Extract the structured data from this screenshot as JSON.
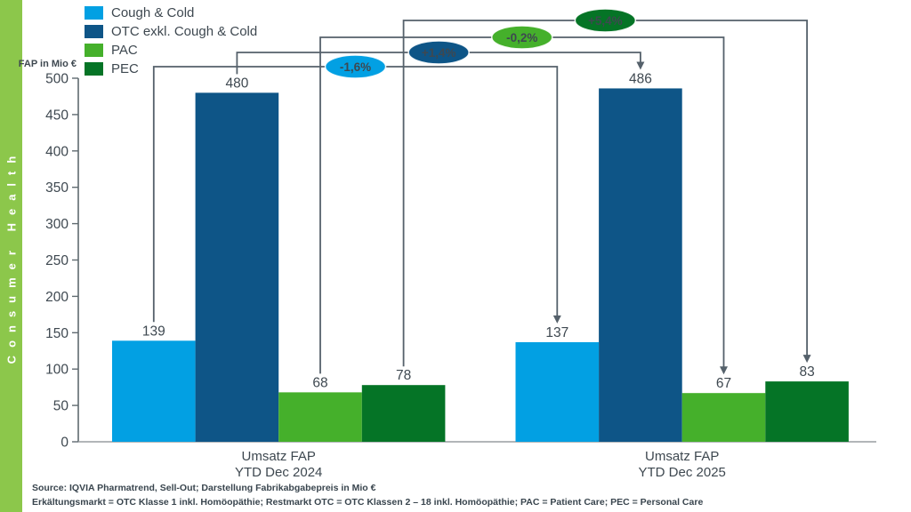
{
  "sidebar": {
    "label": "Consumer Health",
    "color": "#8CC74B"
  },
  "chart_data": {
    "type": "bar",
    "title": "",
    "ylabel": "FAP in Mio €",
    "xlabel": "",
    "ylim": [
      0,
      500
    ],
    "ytick_step": 50,
    "ytick_labels": [
      "0",
      "50",
      "100",
      "150",
      "200",
      "250",
      "300",
      "350",
      "400",
      "450",
      "500"
    ],
    "grid": false,
    "legend_position": "top-left",
    "categories": [
      [
        "Umsatz FAP",
        "YTD Dec 2024"
      ],
      [
        "Umsatz FAP",
        "YTD Dec 2025"
      ]
    ],
    "series": [
      {
        "name": "Cough & Cold",
        "color": "#02A0E3",
        "values": [
          139,
          137
        ],
        "change": "-1,6%"
      },
      {
        "name": "OTC exkl. Cough & Cold",
        "color": "#0E5587",
        "values": [
          480,
          486
        ],
        "change": "+1,4%"
      },
      {
        "name": "PAC",
        "color": "#45B02B",
        "values": [
          68,
          67
        ],
        "change": "-0,2%"
      },
      {
        "name": "PEC",
        "color": "#057426",
        "values": [
          78,
          83
        ],
        "change": "+5,4%"
      }
    ]
  },
  "footer": {
    "line1": "Source: IQVIA Pharmatrend, Sell-Out; Darstellung Fabrikabgabepreis in Mio €",
    "line2": "Erkältungsmarkt = OTC Klasse 1 inkl. Homöopäthie; Restmarkt OTC = OTC Klassen 2 – 18 inkl. Homöopäthie; PAC = Patient Care; PEC = Personal Care"
  },
  "colors": {
    "sidebar": "#8CC74B",
    "text": "#3E4850",
    "connector": "#55616B",
    "axis": "#5F6A70",
    "baseline": "#989EA2",
    "badge_text": "#FFFFFF"
  }
}
